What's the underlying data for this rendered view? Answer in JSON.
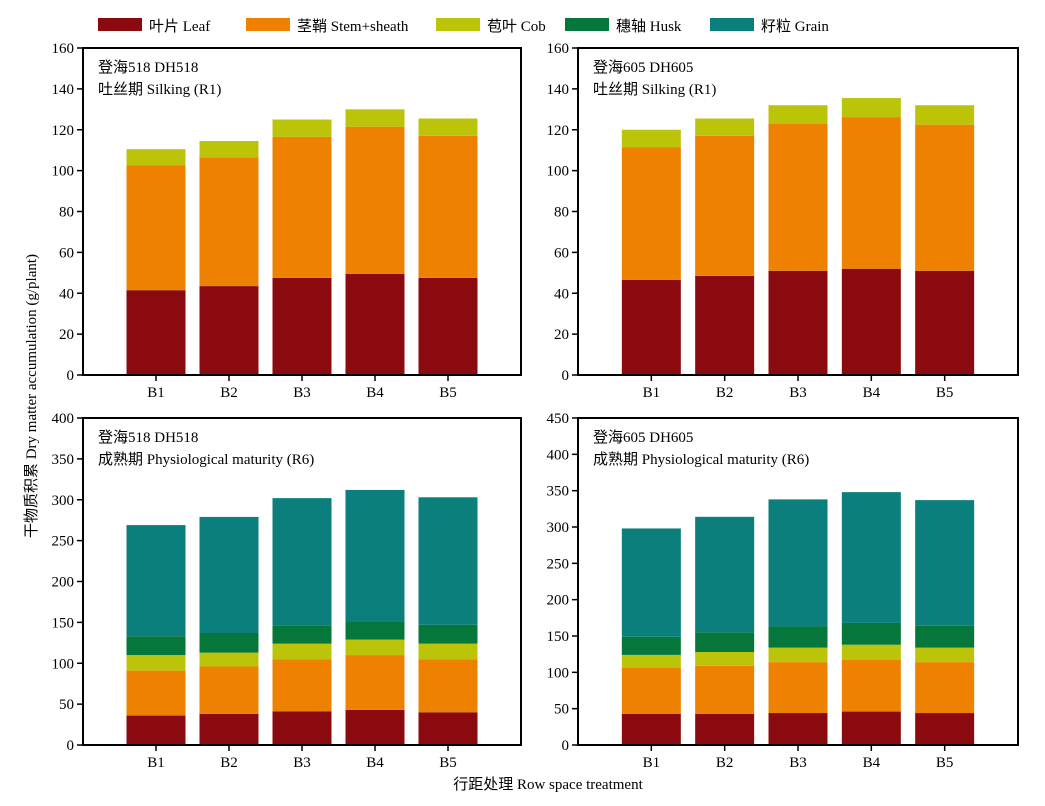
{
  "legend": [
    {
      "key": "leaf",
      "label": "叶片 Leaf",
      "color": "#8B0A10"
    },
    {
      "key": "stem",
      "label": "茎鞘 Stem+sheath",
      "color": "#EE8100"
    },
    {
      "key": "cob",
      "label": "苞叶 Cob",
      "color": "#BCC40A"
    },
    {
      "key": "husk",
      "label": "穗轴 Husk",
      "color": "#06773A"
    },
    {
      "key": "grain",
      "label": "籽粒 Grain",
      "color": "#0A7F7C"
    }
  ],
  "ylabel": "干物质积累 Dry matter accumulation (g/plant)",
  "xlabel": "行距处理 Row space treatment",
  "chart_data": [
    {
      "type": "bar",
      "stacked": true,
      "position": "top-left",
      "label_line1": "登海518 DH518",
      "label_line2": "吐丝期 Silking (R1)",
      "categories": [
        "B1",
        "B2",
        "B3",
        "B4",
        "B5"
      ],
      "ylim": [
        0,
        160
      ],
      "yticks": [
        0,
        20,
        40,
        60,
        80,
        100,
        120,
        140,
        160
      ],
      "series": [
        {
          "key": "leaf",
          "values": [
            41.5,
            43.5,
            47.5,
            49.5,
            47.5
          ]
        },
        {
          "key": "stem",
          "values": [
            61,
            63,
            69,
            72,
            69.5
          ]
        },
        {
          "key": "cob",
          "values": [
            8,
            8,
            8.5,
            8.5,
            8.5
          ]
        }
      ]
    },
    {
      "type": "bar",
      "stacked": true,
      "position": "top-right",
      "label_line1": "登海605 DH605",
      "label_line2": "吐丝期 Silking (R1)",
      "categories": [
        "B1",
        "B2",
        "B3",
        "B4",
        "B5"
      ],
      "ylim": [
        0,
        160
      ],
      "yticks": [
        0,
        20,
        40,
        60,
        80,
        100,
        120,
        140,
        160
      ],
      "series": [
        {
          "key": "leaf",
          "values": [
            46.5,
            48.5,
            51,
            52,
            51
          ]
        },
        {
          "key": "stem",
          "values": [
            65,
            68.5,
            72,
            74,
            71.5
          ]
        },
        {
          "key": "cob",
          "values": [
            8.5,
            8.5,
            9,
            9.5,
            9.5
          ]
        }
      ]
    },
    {
      "type": "bar",
      "stacked": true,
      "position": "bottom-left",
      "label_line1": "登海518 DH518",
      "label_line2": "成熟期 Physiological maturity (R6)",
      "categories": [
        "B1",
        "B2",
        "B3",
        "B4",
        "B5"
      ],
      "ylim": [
        0,
        400
      ],
      "yticks": [
        0,
        50,
        100,
        150,
        200,
        250,
        300,
        350,
        400
      ],
      "series": [
        {
          "key": "leaf",
          "values": [
            36,
            38,
            41,
            43,
            40
          ]
        },
        {
          "key": "stem",
          "values": [
            55,
            58,
            64,
            67,
            65
          ]
        },
        {
          "key": "cob",
          "values": [
            19,
            17,
            19,
            19,
            19
          ]
        },
        {
          "key": "husk",
          "values": [
            23,
            24,
            22,
            22,
            23
          ]
        },
        {
          "key": "grain",
          "values": [
            136,
            142,
            156,
            161,
            156
          ]
        }
      ]
    },
    {
      "type": "bar",
      "stacked": true,
      "position": "bottom-right",
      "label_line1": "登海605 DH605",
      "label_line2": "成熟期 Physiological maturity (R6)",
      "categories": [
        "B1",
        "B2",
        "B3",
        "B4",
        "B5"
      ],
      "ylim": [
        0,
        450
      ],
      "yticks": [
        0,
        50,
        100,
        150,
        200,
        250,
        300,
        350,
        400,
        450
      ],
      "series": [
        {
          "key": "leaf",
          "values": [
            43,
            43,
            44,
            46,
            44
          ]
        },
        {
          "key": "stem",
          "values": [
            63,
            66,
            70,
            71,
            70
          ]
        },
        {
          "key": "cob",
          "values": [
            18,
            19,
            20,
            21,
            20
          ]
        },
        {
          "key": "husk",
          "values": [
            25,
            27,
            29,
            30,
            30
          ]
        },
        {
          "key": "grain",
          "values": [
            149,
            159,
            175,
            180,
            173
          ]
        }
      ]
    }
  ]
}
